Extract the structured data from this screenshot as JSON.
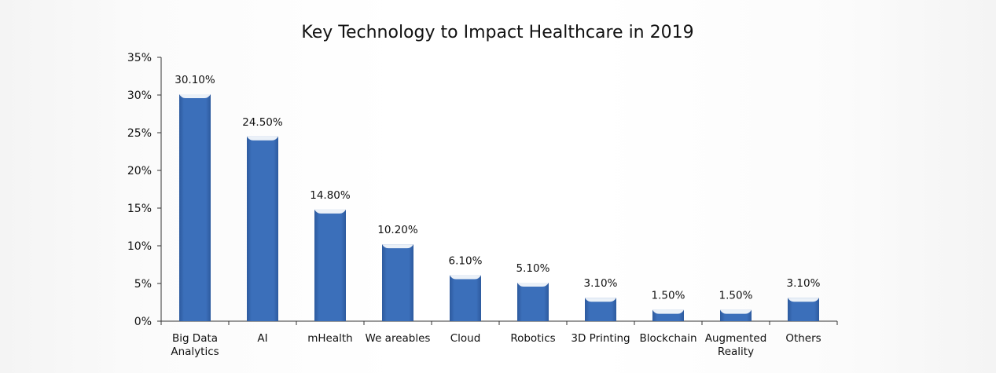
{
  "chart_data": {
    "type": "bar",
    "title": "Key Technology to Impact Healthcare in 2019",
    "xlabel": "",
    "ylabel": "",
    "ylim": [
      0,
      35
    ],
    "yticks": [
      "0%",
      "5%",
      "10%",
      "15%",
      "20%",
      "25%",
      "30%",
      "35%"
    ],
    "categories": [
      [
        "Big Data",
        "Analytics"
      ],
      [
        "AI"
      ],
      [
        "mHealth"
      ],
      [
        "We areables"
      ],
      [
        "Cloud"
      ],
      [
        "Robotics"
      ],
      [
        "3D Printing"
      ],
      [
        "Blockchain"
      ],
      [
        "Augmented",
        "Reality"
      ],
      [
        "Others"
      ]
    ],
    "values": [
      30.1,
      24.5,
      14.8,
      10.2,
      6.1,
      5.1,
      3.1,
      1.5,
      1.5,
      3.1
    ],
    "data_labels": [
      "30.10%",
      "24.50%",
      "14.80%",
      "10.20%",
      "6.10%",
      "5.10%",
      "3.10%",
      "1.50%",
      "1.50%",
      "3.10%"
    ],
    "bar_color": "#3b6fba",
    "grid": false,
    "legend": "none"
  }
}
